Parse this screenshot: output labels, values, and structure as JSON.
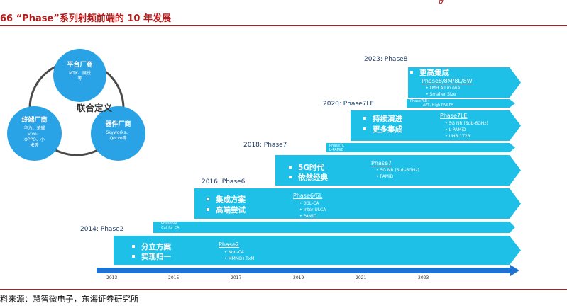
{
  "header": {
    "title": "66 “Phase”系列射频前端的 10 年发展",
    "source": "料来源：慧智微电子，东海证券研究所"
  },
  "ecosystem": {
    "center": "联合定义",
    "nodes": [
      {
        "title": "平台厂商",
        "desc": "MTK、展锐\n等"
      },
      {
        "title": "终端厂商",
        "desc": "华为、荣耀\nvivo、\nOPPO、小\n米等"
      },
      {
        "title": "器件厂商",
        "desc": "Skyworks、\nQorvo等"
      }
    ]
  },
  "phases": [
    {
      "year_label": "2014: Phase2",
      "bullets": [
        "分立方案",
        "实现归一"
      ],
      "name": "Phase2",
      "features": [
        "Non-CA",
        "MMMB+TxM"
      ],
      "thin": {
        "name": "Phase5N",
        "lines": [
          "Cut for CA"
        ]
      }
    },
    {
      "year_label": "2016: Phase6",
      "bullets": [
        "集成方案",
        "高端尝试"
      ],
      "name": "Phase6/6L",
      "features": [
        "3DL-CA",
        "Inter-ULCA",
        "PAMiD"
      ]
    },
    {
      "year_label": "2018: Phase7",
      "bullets": [
        "5G时代",
        "依然经典"
      ],
      "name": "Phase7",
      "features": [
        "5G NR (Sub-6GHz)",
        "PAMiD"
      ],
      "thin": {
        "name": "Phase7L",
        "lines": [
          "L-PAMiD"
        ]
      }
    },
    {
      "year_label": "2020: Phase7LE",
      "bullets": [
        "持续演进",
        "更多集成"
      ],
      "name": "Phase7LE",
      "features": [
        "5G NR (Sub-6GHz)",
        "L-PAMiD",
        "UHB 1T2R"
      ],
      "thin": {
        "name": "Phase7LE+",
        "lines": [
          "APT, High PAE PA"
        ]
      }
    },
    {
      "year_label": "2023: Phase8",
      "bullets": [
        "更高集成"
      ],
      "name": "Phase8/8M/8L/8W",
      "features": [
        "LMH All in one",
        "Smaller Size"
      ]
    }
  ],
  "axis": {
    "ticks": [
      "2013",
      "2015",
      "2017",
      "2019",
      "2021",
      "2023"
    ]
  },
  "colors": {
    "block": "#1fc0e8",
    "node": "#29a3e6",
    "axis": "#1e73d2",
    "accent": "#b71c1c"
  }
}
